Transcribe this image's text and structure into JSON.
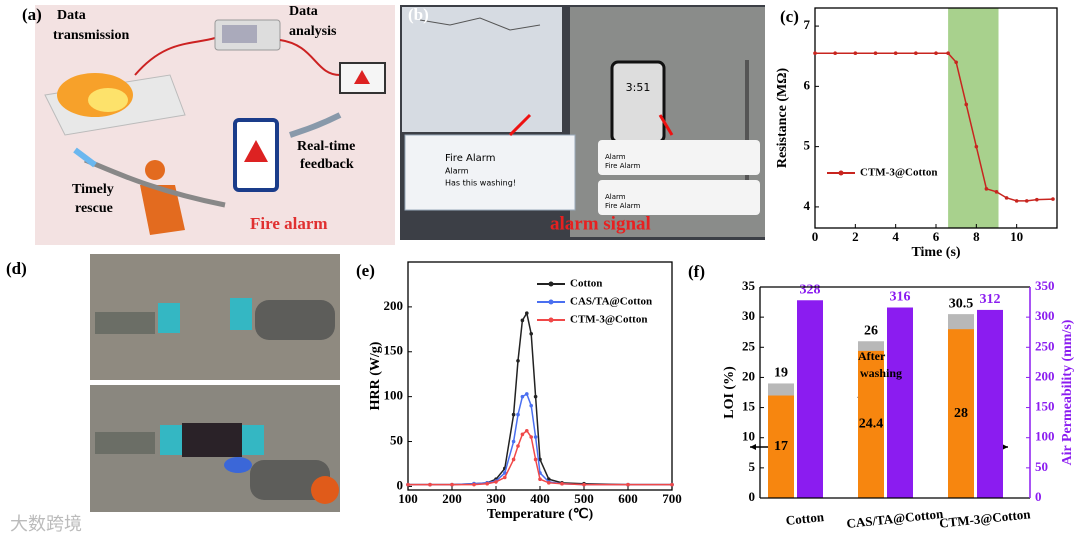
{
  "figure": {
    "panel_labels": [
      "(a)",
      "(b)",
      "(d)"
    ],
    "panel_a": {
      "data_transmission": [
        "Data",
        "transmission"
      ],
      "data_analysis": [
        "Data",
        "analysis"
      ],
      "feedback": [
        "Real-time",
        "feedback"
      ],
      "rescue": [
        "Timely",
        "rescue"
      ],
      "fire_alarm": "Fire alarm"
    },
    "panel_b": {
      "popup_title": "Fire Alarm",
      "popup_line": "Alarm",
      "popup_note": "Has this washing!",
      "phone_time": "3:51",
      "notifications": [
        [
          "Alarm",
          "Fire Alarm"
        ],
        [
          "Alarm",
          "Fire Alarm"
        ]
      ],
      "caption": "alarm signal"
    },
    "watermark": "大数跨境"
  },
  "chart_data": [
    {
      "type": "line",
      "label": "(c)",
      "x_label": "Time (s)",
      "y_label": "Resistance (MΩ)",
      "x": [
        0,
        1,
        2,
        3,
        4,
        5,
        6,
        6.6,
        7,
        7.5,
        8,
        8.5,
        9,
        9.5,
        10,
        10.5,
        11,
        11.8
      ],
      "series": [
        {
          "name": "CTM-3@Cotton",
          "color": "#c8251f",
          "values": [
            6.55,
            6.55,
            6.55,
            6.55,
            6.55,
            6.55,
            6.55,
            6.55,
            6.4,
            5.7,
            5.0,
            4.3,
            4.25,
            4.15,
            4.1,
            4.1,
            4.12,
            4.13
          ]
        }
      ],
      "xlim": [
        0,
        12
      ],
      "xticks": [
        0,
        2,
        4,
        6,
        8,
        10
      ],
      "ylim": [
        3.65,
        7.3
      ],
      "yticks": [
        4,
        5,
        6,
        7
      ],
      "highlight_x": [
        6.6,
        9.1
      ],
      "highlight_color": "#a8d18d",
      "legend": "center-left"
    },
    {
      "type": "line",
      "label": "(e)",
      "x_label": "Temperature (℃)",
      "y_label": "HRR (W/g)",
      "x": [
        100,
        150,
        200,
        250,
        280,
        300,
        320,
        340,
        350,
        360,
        370,
        380,
        390,
        400,
        420,
        450,
        500,
        600,
        700
      ],
      "series": [
        {
          "name": "Cotton",
          "color": "#222222",
          "values": [
            2,
            2,
            2,
            3,
            4,
            8,
            20,
            80,
            140,
            185,
            193,
            170,
            100,
            30,
            8,
            4,
            3,
            2,
            2
          ]
        },
        {
          "name": "CAS/TA@Cotton",
          "color": "#4a6ff0",
          "values": [
            2,
            2,
            2,
            3,
            4,
            6,
            15,
            50,
            80,
            100,
            103,
            90,
            55,
            15,
            5,
            3,
            2,
            2,
            2
          ]
        },
        {
          "name": "CTM-3@Cotton",
          "color": "#f04848",
          "values": [
            2,
            2,
            2,
            2,
            3,
            5,
            10,
            30,
            45,
            58,
            62,
            55,
            30,
            8,
            4,
            3,
            2,
            2,
            2
          ]
        }
      ],
      "xlim": [
        100,
        700
      ],
      "xticks": [
        100,
        200,
        300,
        400,
        500,
        600,
        700
      ],
      "ylim": [
        -4,
        250
      ],
      "yticks": [
        0,
        50,
        100,
        150,
        200
      ],
      "legend": "upper-right"
    },
    {
      "type": "bar",
      "label": "(f)",
      "y_label": "LOI (%)",
      "y2_label": "Air Permeability (mm/s)",
      "categories": [
        "Cotton",
        "CAS/TA@Cotton",
        "CTM-3@Cotton"
      ],
      "series": [
        {
          "color": "#b8b8b8",
          "values": [
            19,
            26,
            30.5
          ]
        },
        {
          "color": "#f7860f",
          "values": [
            17,
            24.4,
            28
          ]
        },
        {
          "color": "#8b1cf0",
          "axis": "y2",
          "values": [
            328,
            316,
            312
          ]
        }
      ],
      "overlap": true,
      "annotation": [
        "After",
        "washing"
      ],
      "ylim": [
        0,
        35
      ],
      "yticks": [
        0,
        5,
        10,
        15,
        20,
        25,
        30,
        35
      ],
      "y2lim": [
        0,
        350
      ],
      "y2ticks": [
        0,
        50,
        100,
        150,
        200,
        250,
        300,
        350
      ]
    }
  ]
}
